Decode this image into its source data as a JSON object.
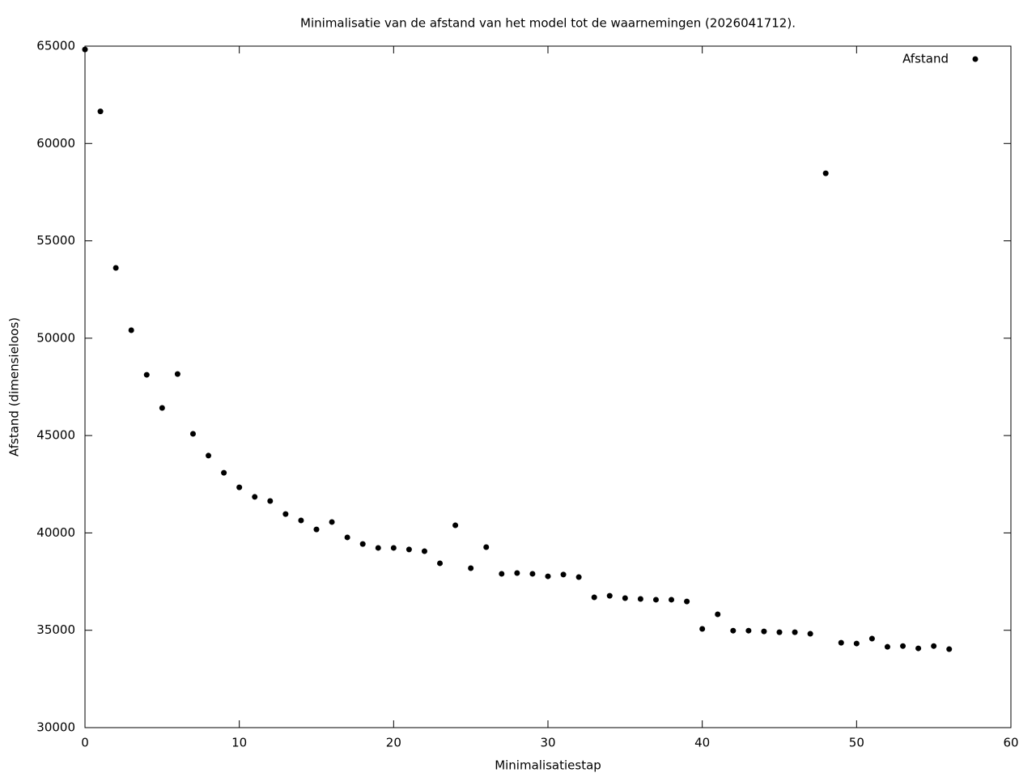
{
  "chart_data": {
    "type": "scatter",
    "title": "Minimalisatie van de afstand van het model tot de waarnemingen (2026041712).",
    "x_label": "Minimalisatiestap",
    "y_label": "Afstand (dimensieloos)",
    "series": [
      {
        "name": "Afstand",
        "color": "#000000",
        "x": [
          0,
          1,
          2,
          3,
          4,
          5,
          6,
          7,
          8,
          9,
          10,
          11,
          12,
          13,
          14,
          15,
          16,
          17,
          18,
          19,
          20,
          21,
          22,
          23,
          24,
          25,
          26,
          27,
          28,
          29,
          30,
          31,
          32,
          33,
          34,
          35,
          36,
          37,
          38,
          39,
          40,
          41,
          42,
          43,
          44,
          45,
          46,
          47,
          48,
          49,
          50,
          51,
          52,
          53,
          54,
          55,
          56
        ],
        "values": [
          64830,
          61650,
          53610,
          50410,
          48120,
          46420,
          48160,
          45090,
          43970,
          43090,
          42340,
          41850,
          41640,
          40970,
          40640,
          40180,
          40560,
          39770,
          39430,
          39230,
          39230,
          39150,
          39060,
          38440,
          40390,
          38190,
          39270,
          37900,
          37940,
          37900,
          37770,
          37860,
          37730,
          36690,
          36770,
          36650,
          36610,
          36570,
          36570,
          36480,
          35070,
          35820,
          34980,
          34980,
          34940,
          34900,
          34900,
          34820,
          58470,
          34360,
          34320,
          34570,
          34150,
          34190,
          34070,
          34190,
          34030
        ]
      }
    ],
    "xlim": [
      0,
      60
    ],
    "xticks": [
      0,
      10,
      20,
      30,
      40,
      50,
      60
    ],
    "ylim": [
      30000,
      65000
    ],
    "yticks": [
      30000,
      35000,
      40000,
      45000,
      50000,
      55000,
      60000,
      65000
    ],
    "legend": "top-right",
    "grid": false
  }
}
